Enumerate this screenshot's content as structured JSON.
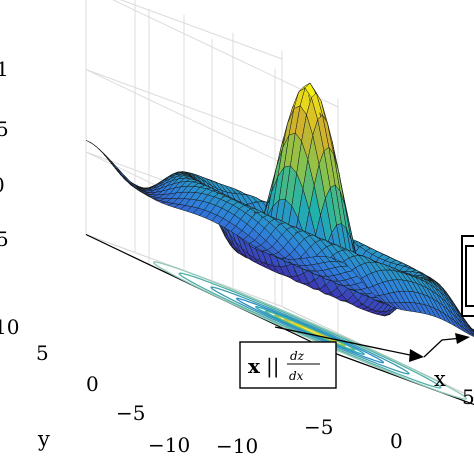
{
  "chart_data": {
    "type": "surface",
    "function": "sinc-like radial surface z = sin(r)/r with contour projection",
    "x": {
      "label": "x",
      "ticks": [
        "−10",
        "−5",
        "0",
        "5"
      ],
      "range": [
        -10,
        10
      ]
    },
    "y": {
      "label": "y",
      "ticks": [
        "−10",
        "−5",
        "0",
        "5",
        "10"
      ],
      "range": [
        -10,
        10
      ]
    },
    "z": {
      "ticks": [
        "1",
        "5",
        "0",
        "5"
      ],
      "range": [
        -0.5,
        1
      ]
    },
    "annotation": {
      "label": "x || dz/dx",
      "bold": "x",
      "separator": "||",
      "numerator": "dz",
      "denominator": "dx"
    },
    "colormap": [
      "#3e26a8",
      "#2f7fdd",
      "#20b2aa",
      "#8bc34a",
      "#d4b12a",
      "#f9fb0e"
    ],
    "grid": true
  }
}
